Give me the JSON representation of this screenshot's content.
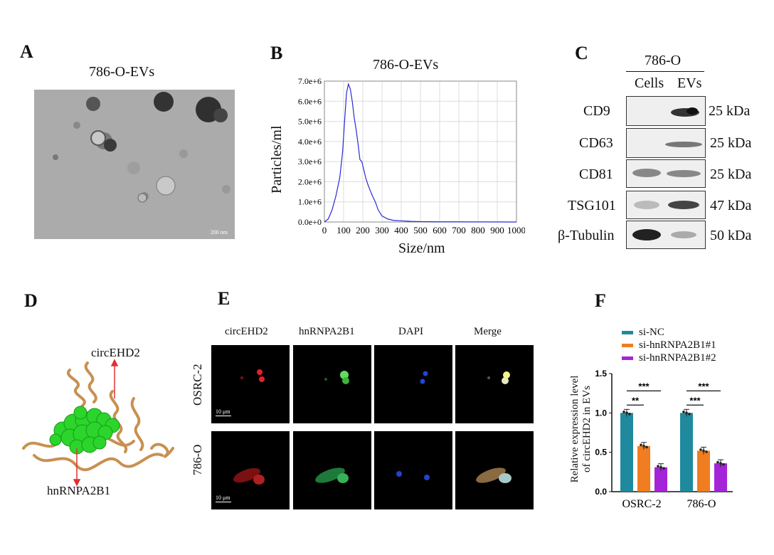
{
  "panelA": {
    "letter": "A",
    "title": "786-O-EVs",
    "scale_bar": "200 nm"
  },
  "panelB": {
    "letter": "B",
    "chart_data": {
      "type": "line",
      "title": "786-O-EVs",
      "xlabel": "Size/nm",
      "ylabel": "Particles/ml",
      "xlim": [
        0,
        1000
      ],
      "ylim": [
        0,
        7000000
      ],
      "xticks": [
        0,
        100,
        200,
        300,
        400,
        500,
        600,
        700,
        800,
        900,
        1000
      ],
      "yticks": [
        "0.0e+0",
        "1.0e+6",
        "2.0e+6",
        "3.0e+6",
        "4.0e+6",
        "5.0e+6",
        "6.0e+6",
        "7.0e+6"
      ],
      "grid": true,
      "color": "#2a2ad6",
      "x": [
        0,
        20,
        40,
        60,
        80,
        95,
        105,
        115,
        125,
        135,
        145,
        155,
        165,
        175,
        185,
        195,
        205,
        215,
        225,
        235,
        250,
        265,
        280,
        300,
        330,
        360,
        400,
        450,
        500,
        600,
        800,
        1000
      ],
      "y": [
        0,
        150000,
        600000,
        1300000,
        2200000,
        3500000,
        5000000,
        6400000,
        6850000,
        6600000,
        6000000,
        5200000,
        4600000,
        3900000,
        3100000,
        3000000,
        2600000,
        2200000,
        1900000,
        1650000,
        1300000,
        1000000,
        600000,
        300000,
        150000,
        80000,
        60000,
        30000,
        20000,
        10000,
        5000,
        0
      ]
    }
  },
  "panelC": {
    "letter": "C",
    "cell_line": "786-O",
    "col_cells": "Cells",
    "col_evs": "EVs",
    "rows": [
      {
        "label": "CD9",
        "kda": "25 kDa"
      },
      {
        "label": "CD63",
        "kda": "25 kDa"
      },
      {
        "label": "CD81",
        "kda": "25 kDa"
      },
      {
        "label": "TSG101",
        "kda": "47 kDa"
      },
      {
        "label": "β-Tubulin",
        "kda": "50 kDa"
      }
    ]
  },
  "panelD": {
    "letter": "D",
    "label_top": "circEHD2",
    "label_bottom": "hnRNPA2B1"
  },
  "panelE": {
    "letter": "E",
    "columns": [
      "circEHD2",
      "hnRNPA2B1",
      "DAPI",
      "Merge"
    ],
    "rows": [
      "OSRC-2",
      "786-O"
    ],
    "scale_bar": "10 μm"
  },
  "panelF": {
    "letter": "F",
    "legend": [
      "si-NC",
      "si-hnRNPA2B1#1",
      "si-hnRNPA2B1#2"
    ],
    "ylabel_line1": "Relative expression level",
    "ylabel_line2": "of circEHD2 in EVs",
    "sig": [
      "**",
      "***",
      "***",
      "***"
    ],
    "chart_data": {
      "type": "bar",
      "categories": [
        "OSRC-2",
        "786-O"
      ],
      "series": [
        {
          "name": "si-NC",
          "values": [
            1.0,
            1.0
          ],
          "color": "#1f8a9e"
        },
        {
          "name": "si-hnRNPA2B1#1",
          "values": [
            0.58,
            0.52
          ],
          "color": "#f07d1f"
        },
        {
          "name": "si-hnRNPA2B1#2",
          "values": [
            0.31,
            0.36
          ],
          "color": "#a524d8"
        }
      ],
      "ylim": [
        0,
        1.5
      ],
      "yticks": [
        "0.0",
        "0.5",
        "1.0",
        "1.5"
      ]
    }
  }
}
